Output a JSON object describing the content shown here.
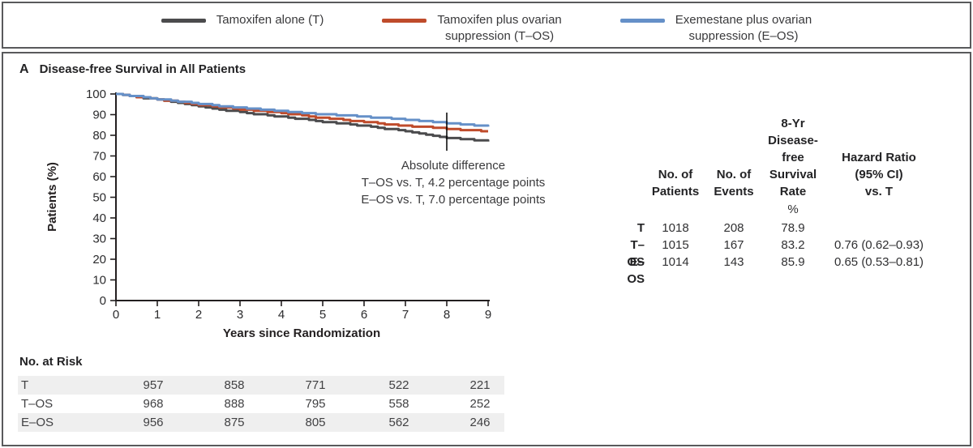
{
  "legend": {
    "items": [
      {
        "label": "Tamoxifen alone (T)",
        "color": "#4b4b4d"
      },
      {
        "label": "Tamoxifen plus ovarian\nsuppression (T–OS)",
        "color": "#bf4b2b"
      },
      {
        "label": "Exemestane plus ovarian\nsuppression (E–OS)",
        "color": "#6590c8"
      }
    ]
  },
  "panel": {
    "letter": "A",
    "title": "Disease-free Survival in All Patients"
  },
  "chart_data": {
    "type": "line",
    "title": "Disease-free Survival in All Patients",
    "xlabel": "Years since Randomization",
    "ylabel": "Patients (%)",
    "xlim": [
      0,
      9
    ],
    "ylim": [
      0,
      100
    ],
    "x_ticks": [
      0,
      1,
      2,
      3,
      4,
      5,
      6,
      7,
      8,
      9
    ],
    "y_ticks": [
      0,
      10,
      20,
      30,
      40,
      50,
      60,
      70,
      80,
      90,
      100
    ],
    "grid": false,
    "legend_position": "top",
    "x": [
      0,
      1,
      2,
      3,
      4,
      5,
      6,
      7,
      8,
      9
    ],
    "series": [
      {
        "name": "Tamoxifen alone (T)",
        "abbr": "T",
        "color": "#4b4b4d",
        "values": [
          100,
          97.2,
          93.8,
          91.2,
          89.0,
          86.6,
          84.6,
          82.0,
          78.9,
          77.0
        ]
      },
      {
        "name": "Tamoxifen plus ovarian suppression (T–OS)",
        "abbr": "T–OS",
        "color": "#bf4b2b",
        "values": [
          100,
          97.4,
          94.8,
          92.6,
          90.8,
          88.4,
          86.4,
          84.6,
          83.2,
          81.8
        ]
      },
      {
        "name": "Exemestane plus ovarian suppression (E–OS)",
        "abbr": "E–OS",
        "color": "#6590c8",
        "values": [
          100,
          97.6,
          95.2,
          93.4,
          91.8,
          90.2,
          89.0,
          87.6,
          85.9,
          84.3
        ]
      }
    ],
    "landmark_year": 8,
    "annotation": {
      "line1": "Absolute difference",
      "line2": "T–OS vs. T, 4.2 percentage points",
      "line3": "E–OS vs. T, 7.0 percentage points"
    }
  },
  "summary_table": {
    "columns": {
      "patients": "No. of\nPatients",
      "events": "No. of\nEvents",
      "rate": "8-Yr\nDisease-\nfree\nSurvival\nRate",
      "hazard_ratio": "Hazard Ratio\n(95% CI)\nvs. T"
    },
    "unit": "%",
    "rows": [
      {
        "label": "T",
        "patients": "1018",
        "events": "208",
        "rate": "78.9",
        "hazard_ratio": ""
      },
      {
        "label": "T–OS",
        "patients": "1015",
        "events": "167",
        "rate": "83.2",
        "hazard_ratio": "0.76 (0.62–0.93)"
      },
      {
        "label": "E–OS",
        "patients": "1014",
        "events": "143",
        "rate": "85.9",
        "hazard_ratio": "0.65 (0.53–0.81)"
      }
    ]
  },
  "no_at_risk": {
    "title": "No. at Risk",
    "rows": [
      {
        "label": "T",
        "values": [
          "957",
          "858",
          "771",
          "522",
          "221"
        ]
      },
      {
        "label": "T–OS",
        "values": [
          "968",
          "888",
          "795",
          "558",
          "252"
        ]
      },
      {
        "label": "E–OS",
        "values": [
          "956",
          "875",
          "805",
          "562",
          "246"
        ]
      }
    ]
  }
}
